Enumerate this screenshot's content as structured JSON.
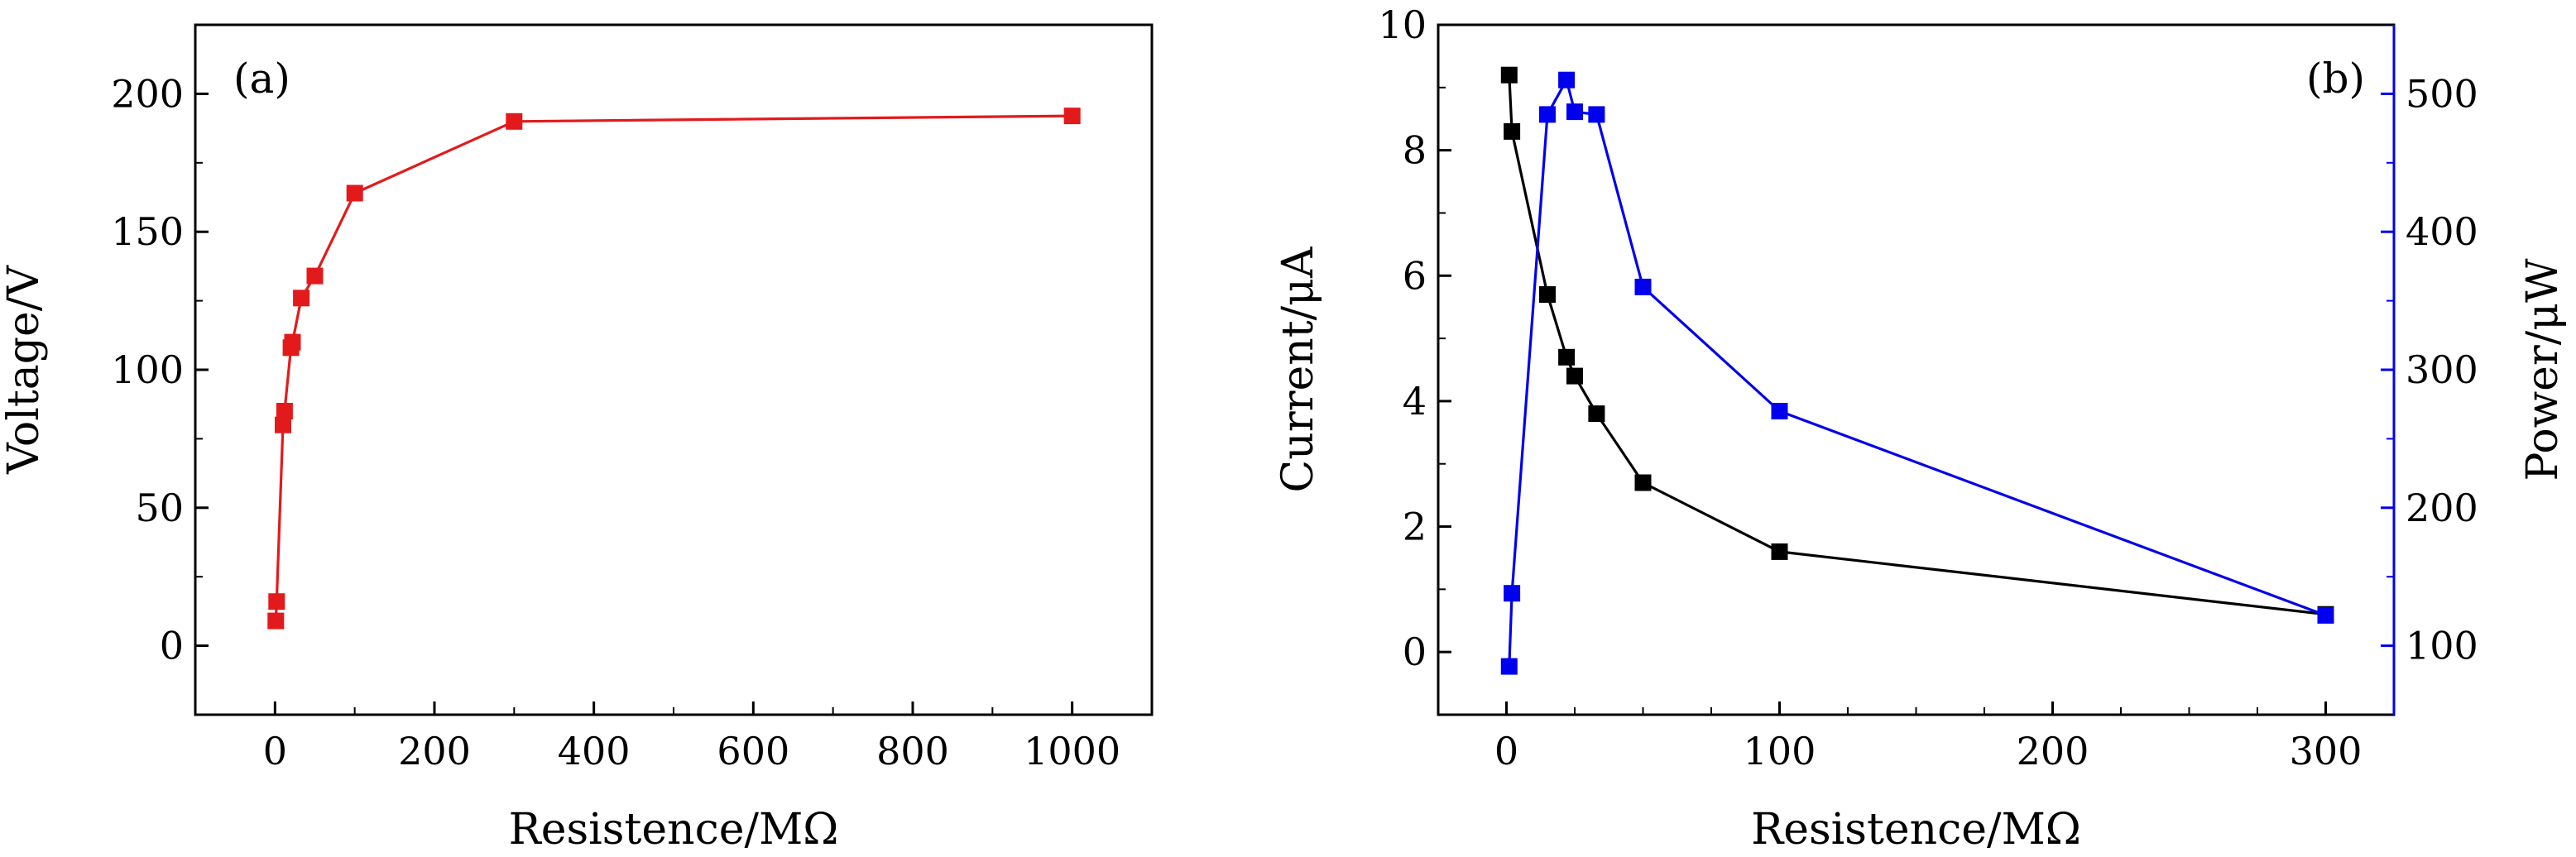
{
  "chart_data": [
    {
      "type": "line",
      "panel_label": "(a)",
      "xlabel": "Resistence/MΩ",
      "ylabel": "Voltage/V",
      "xlim": [
        -100,
        1100
      ],
      "ylim": [
        -25,
        225
      ],
      "xticks": [
        0,
        200,
        400,
        600,
        800,
        1000
      ],
      "xtick_labels": [
        "0",
        "200",
        "400",
        "600",
        "800",
        "1000"
      ],
      "yticks": [
        0,
        50,
        100,
        150,
        200
      ],
      "ytick_labels": [
        "0",
        "50",
        "100",
        "150",
        "200"
      ],
      "series": [
        {
          "name": "Voltage",
          "color": "#e31a1c",
          "marker": "square",
          "x": [
            1,
            2,
            10,
            12,
            20,
            22,
            33,
            50,
            100,
            300,
            1000
          ],
          "y": [
            9,
            16,
            80,
            85,
            108,
            110,
            126,
            134,
            164,
            190,
            192
          ]
        }
      ]
    },
    {
      "type": "line",
      "panel_label": "(b)",
      "xlabel": "Resistence/MΩ",
      "ylabel": "Current/μA",
      "ylabel_right": "Power/μW",
      "xlim": [
        -25,
        325
      ],
      "ylim": [
        -1,
        10
      ],
      "ylim_right": [
        50,
        550
      ],
      "xticks": [
        0,
        100,
        200,
        300
      ],
      "xtick_labels": [
        "0",
        "100",
        "200",
        "300"
      ],
      "yticks": [
        0,
        2,
        4,
        6,
        8,
        10
      ],
      "ytick_labels": [
        "0",
        "2",
        "4",
        "6",
        "8",
        "10"
      ],
      "yticks_right": [
        100,
        200,
        300,
        400,
        500
      ],
      "ytick_labels_right": [
        "100",
        "200",
        "300",
        "400",
        "500"
      ],
      "series": [
        {
          "name": "Current",
          "axis": "left",
          "color": "#000000",
          "marker": "square",
          "x": [
            1,
            2,
            15,
            22,
            25,
            33,
            50,
            100,
            300
          ],
          "y": [
            9.2,
            8.3,
            5.7,
            4.7,
            4.4,
            3.8,
            2.7,
            1.6,
            0.6
          ]
        },
        {
          "name": "Power",
          "axis": "right",
          "color": "#0000ee",
          "marker": "square",
          "x": [
            1,
            2,
            15,
            22,
            25,
            33,
            50,
            100,
            300
          ],
          "y": [
            85,
            138,
            485,
            510,
            487,
            485,
            360,
            270,
            122
          ]
        }
      ]
    }
  ]
}
